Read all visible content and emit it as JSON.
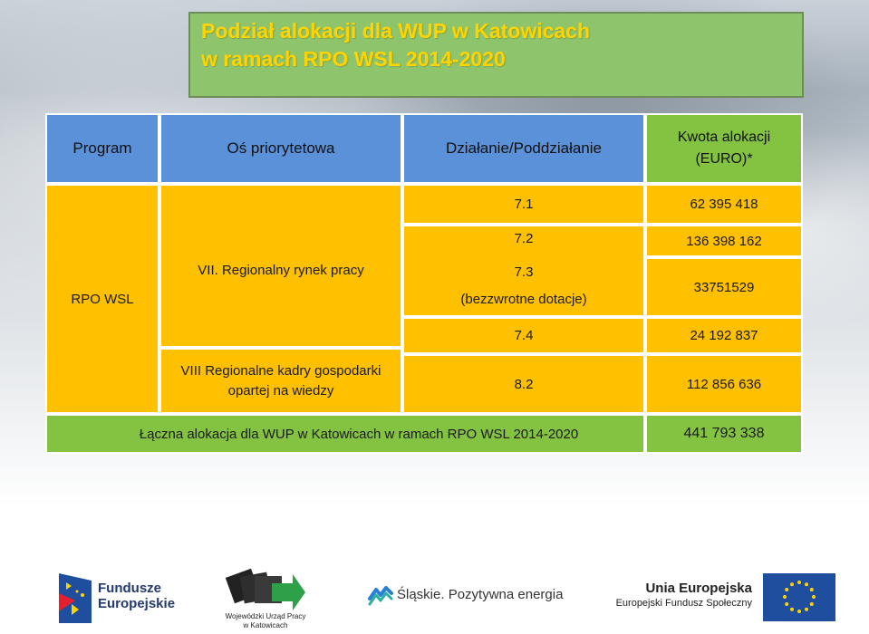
{
  "title": {
    "line1": "Podział alokacji dla WUP w Katowicach",
    "line2": "w ramach RPO WSL 2014-2020"
  },
  "table": {
    "headers": {
      "program": "Program",
      "os": "Oś priorytetowa",
      "dzialanie": "Działanie/Poddziałanie",
      "kwota_line1": "Kwota alokacji",
      "kwota_line2": "(EURO)*"
    },
    "program": "RPO WSL",
    "os_vii": "VII. Regionalny rynek pracy",
    "os_viii_line1": "VIII Regionalne kadry gospodarki",
    "os_viii_line2": "opartej na wiedzy",
    "rows": [
      {
        "dzialanie": "7.1",
        "kwota": "62 395 418"
      },
      {
        "dzialanie": "7.2",
        "kwota": "136 398 162"
      },
      {
        "dzialanie": "7.3",
        "dzialanie_sub": "(bezzwrotne dotacje)",
        "kwota": "33751529"
      },
      {
        "dzialanie": "7.4",
        "kwota": "24 192 837"
      },
      {
        "dzialanie": "8.2",
        "kwota": "112 856 636"
      }
    ],
    "total_label": "Łączna alokacja dla WUP w Katowicach  w ramach RPO WSL 2014-2020",
    "total_value": "441 793 338"
  },
  "logos": {
    "fundusze_line1": "Fundusze",
    "fundusze_line2": "Europejskie",
    "wup_line1": "Wojewódzki Urząd Pracy",
    "wup_line2": "w Katowicach",
    "slaskie": "Śląskie. Pozytywna energia",
    "ue_line1": "Unia Europejska",
    "ue_line2": "Europejski Fundusz Społeczny"
  },
  "colors": {
    "header_blue": "#5a91d8",
    "header_green": "#84c241",
    "cell_yellow": "#ffc000",
    "title_green": "#8ec46b",
    "title_text": "#ffd400",
    "eu_blue": "#1f4e9e"
  }
}
